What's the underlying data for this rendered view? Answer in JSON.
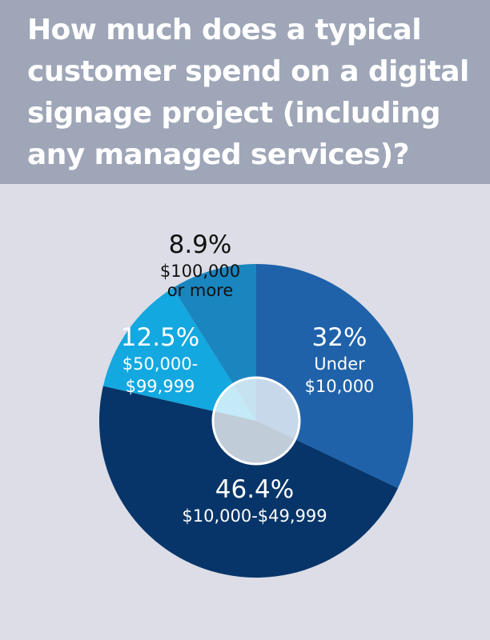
{
  "title": "How much does a typical customer spend on a digital signage project (including any managed services)?",
  "chart_data": {
    "type": "pie",
    "title": "How much does a typical customer spend on a digital signage project (including any managed services)?",
    "unit": "%",
    "slices": [
      {
        "label": "Under $10,000",
        "value": 32,
        "display": "32%",
        "color": "#1f62aa",
        "text_color": "#ffffff",
        "label_lines": [
          "Under",
          "$10,000"
        ]
      },
      {
        "label": "$10,000-$49,999",
        "value": 46.4,
        "display": "46.4%",
        "color": "#073569",
        "text_color": "#ffffff",
        "label_lines": [
          "$10,000-$49,999"
        ]
      },
      {
        "label": "$50,000-$99,999",
        "value": 12.5,
        "display": "12.5%",
        "color": "#13a8e0",
        "text_color": "#ffffff",
        "label_lines": [
          "$50,000-",
          "$99,999"
        ]
      },
      {
        "label": "$100,000 or more",
        "value": 8.9,
        "display": "8.9%",
        "color": "#1a86bf",
        "text_color": "#111111",
        "label_lines": [
          "$100,000",
          "or more"
        ]
      }
    ],
    "start_angle": "12 o'clock",
    "direction": "clockwise",
    "center_hole": true
  }
}
